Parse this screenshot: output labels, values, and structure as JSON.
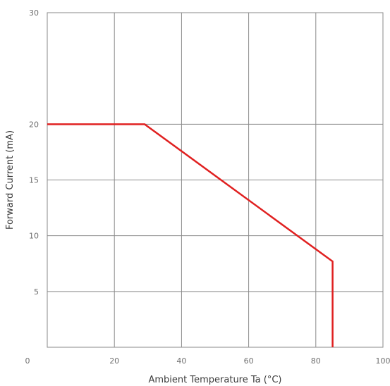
{
  "chart_data": {
    "type": "line",
    "title": "",
    "xlabel": "Ambient Temperature Ta (°C)",
    "ylabel": "Forward Current (mA)",
    "xlim": [
      0,
      100
    ],
    "ylim": [
      0,
      30
    ],
    "x_ticks": [
      20,
      40,
      60,
      80,
      100
    ],
    "y_ticks": [
      5,
      10,
      15,
      20,
      30
    ],
    "origin_label": "0",
    "grid": true,
    "series": [
      {
        "color": "#e02020",
        "x": [
          0,
          29,
          85,
          85
        ],
        "y": [
          20,
          20,
          7.7,
          0
        ]
      }
    ]
  }
}
